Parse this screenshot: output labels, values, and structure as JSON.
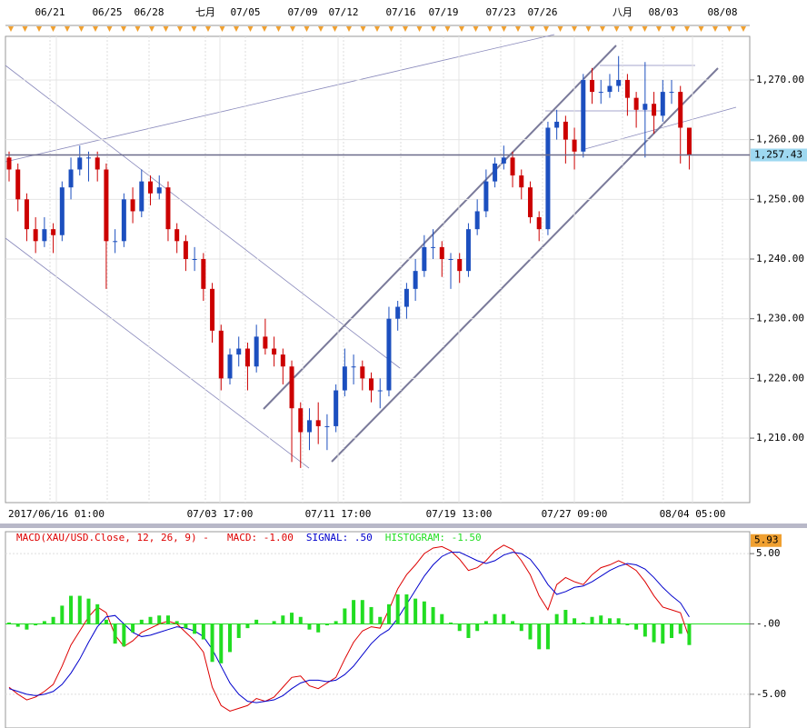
{
  "chart_data": [
    {
      "type": "candlestick",
      "top_dates": [
        "06/21",
        "06/25",
        "06/28",
        "七月",
        "07/05",
        "07/09",
        "07/12",
        "07/16",
        "07/19",
        "07/23",
        "07/26",
        "八月",
        "08/03",
        "08/08"
      ],
      "bottom_dates": [
        "2017/06/16 01:00",
        "07/03 17:00",
        "07/11 17:00",
        "07/19 13:00",
        "07/27 09:00",
        "08/04 05:00"
      ],
      "ylim": [
        1199.2,
        1277.3
      ],
      "yticks": [
        {
          "value": 1210,
          "label": "1,210.00"
        },
        {
          "value": 1220,
          "label": "1,220.00"
        },
        {
          "value": 1230,
          "label": "1,230.00"
        },
        {
          "value": 1240,
          "label": "1,240.00"
        },
        {
          "value": 1250,
          "label": "1,250.00"
        },
        {
          "value": 1260,
          "label": "1,260.00"
        },
        {
          "value": 1270,
          "label": "1,270.00"
        }
      ],
      "current_price": {
        "value": 1257.43,
        "label": "1,257.43"
      },
      "up_color": "#1c4fbf",
      "down_color": "#cc0000",
      "candles": [
        [
          1257,
          1258,
          1253,
          1255
        ],
        [
          1255,
          1256,
          1248,
          1250
        ],
        [
          1250,
          1251,
          1243,
          1245
        ],
        [
          1245,
          1247,
          1241,
          1243
        ],
        [
          1243,
          1247,
          1242,
          1245
        ],
        [
          1245,
          1246,
          1241,
          1244
        ],
        [
          1244,
          1253,
          1243,
          1252
        ],
        [
          1252,
          1257,
          1250,
          1255
        ],
        [
          1255,
          1259,
          1254,
          1257
        ],
        [
          1257,
          1258,
          1253,
          1257
        ],
        [
          1257,
          1258,
          1253,
          1255
        ],
        [
          1255,
          1256,
          1235,
          1243
        ],
        [
          1243,
          1245,
          1241,
          1243
        ],
        [
          1243,
          1251,
          1242,
          1250
        ],
        [
          1250,
          1252,
          1246,
          1248
        ],
        [
          1248,
          1255,
          1247,
          1253
        ],
        [
          1253,
          1254,
          1249,
          1251
        ],
        [
          1251,
          1254,
          1250,
          1252
        ],
        [
          1252,
          1253,
          1243,
          1245
        ],
        [
          1245,
          1246,
          1241,
          1243
        ],
        [
          1243,
          1244,
          1238,
          1240
        ],
        [
          1240,
          1242,
          1238,
          1240
        ],
        [
          1240,
          1241,
          1233,
          1235
        ],
        [
          1235,
          1236,
          1226,
          1228
        ],
        [
          1228,
          1229,
          1218,
          1220
        ],
        [
          1220,
          1225,
          1219,
          1224
        ],
        [
          1224,
          1227,
          1222,
          1225
        ],
        [
          1225,
          1226,
          1218,
          1222
        ],
        [
          1222,
          1229,
          1221,
          1227
        ],
        [
          1227,
          1230,
          1224,
          1225
        ],
        [
          1225,
          1227,
          1222,
          1224
        ],
        [
          1224,
          1225,
          1219,
          1222
        ],
        [
          1222,
          1223,
          1206,
          1215
        ],
        [
          1215,
          1216,
          1205,
          1211
        ],
        [
          1211,
          1215,
          1208,
          1213
        ],
        [
          1213,
          1216,
          1209,
          1212
        ],
        [
          1212,
          1214,
          1208,
          1212
        ],
        [
          1212,
          1219,
          1211,
          1218
        ],
        [
          1218,
          1225,
          1217,
          1222
        ],
        [
          1222,
          1224,
          1219,
          1222
        ],
        [
          1222,
          1223,
          1218,
          1220
        ],
        [
          1220,
          1221,
          1216,
          1218
        ],
        [
          1218,
          1220,
          1215,
          1218
        ],
        [
          1218,
          1232,
          1217,
          1230
        ],
        [
          1230,
          1233,
          1228,
          1232
        ],
        [
          1232,
          1236,
          1230,
          1235
        ],
        [
          1235,
          1240,
          1233,
          1238
        ],
        [
          1238,
          1244,
          1237,
          1242
        ],
        [
          1242,
          1245,
          1240,
          1242
        ],
        [
          1242,
          1243,
          1237,
          1240
        ],
        [
          1240,
          1241,
          1235,
          1240
        ],
        [
          1240,
          1241,
          1236,
          1238
        ],
        [
          1238,
          1246,
          1237,
          1245
        ],
        [
          1245,
          1250,
          1244,
          1248
        ],
        [
          1248,
          1255,
          1247,
          1253
        ],
        [
          1253,
          1257,
          1252,
          1256
        ],
        [
          1256,
          1259,
          1255,
          1257
        ],
        [
          1257,
          1258,
          1252,
          1254
        ],
        [
          1254,
          1255,
          1250,
          1252
        ],
        [
          1252,
          1253,
          1246,
          1247
        ],
        [
          1247,
          1248,
          1243,
          1245
        ],
        [
          1245,
          1263,
          1244,
          1262
        ],
        [
          1262,
          1265,
          1260,
          1263
        ],
        [
          1263,
          1264,
          1256,
          1260
        ],
        [
          1260,
          1262,
          1255,
          1258
        ],
        [
          1258,
          1271,
          1257,
          1270
        ],
        [
          1270,
          1272,
          1266,
          1268
        ],
        [
          1268,
          1270,
          1266,
          1268
        ],
        [
          1268,
          1271,
          1267,
          1269
        ],
        [
          1269,
          1274,
          1268,
          1270
        ],
        [
          1270,
          1271,
          1264,
          1267
        ],
        [
          1267,
          1268,
          1262,
          1265
        ],
        [
          1265,
          1273,
          1257,
          1266
        ],
        [
          1266,
          1268,
          1261,
          1264
        ],
        [
          1264,
          1270,
          1263,
          1268
        ],
        [
          1268,
          1270,
          1266,
          1268
        ],
        [
          1268,
          1269,
          1256,
          1262
        ],
        [
          1262,
          1262,
          1255,
          1257.43
        ]
      ]
    },
    {
      "type": "macd",
      "title": "MACD(XAU/USD.Close, 12, 26, 9) -",
      "ylim": [
        -7.4,
        6.56
      ],
      "yticks": [
        {
          "value": 5,
          "label": "5.00"
        },
        {
          "value": 0,
          "label": "-.00"
        },
        {
          "value": -5,
          "label": "-5.00"
        }
      ],
      "top_marker": {
        "value": 5.93,
        "label": "5.93"
      },
      "series": [
        {
          "name": "MACD",
          "legend": "MACD: -1.00",
          "color": "#dd0000",
          "values": [
            -4.5,
            -5,
            -5.4,
            -5.2,
            -4.8,
            -4.3,
            -3,
            -1.5,
            -0.5,
            0.5,
            1.2,
            0.8,
            -0.8,
            -1.6,
            -1.2,
            -0.6,
            -0.3,
            0,
            0.2,
            0,
            -0.6,
            -1.2,
            -2,
            -4.5,
            -5.8,
            -6.2,
            -6,
            -5.8,
            -5.3,
            -5.5,
            -5.2,
            -4.5,
            -3.8,
            -3.7,
            -4.4,
            -4.6,
            -4.2,
            -3.8,
            -2.5,
            -1.3,
            -0.5,
            -0.2,
            -0.3,
            1,
            2.5,
            3.5,
            4.2,
            5,
            5.4,
            5.5,
            5.2,
            4.6,
            3.8,
            4,
            4.5,
            5.2,
            5.6,
            5.3,
            4.5,
            3.5,
            2,
            1,
            2.8,
            3.3,
            3,
            2.8,
            3.5,
            4,
            4.2,
            4.5,
            4.2,
            3.8,
            3,
            2,
            1.2,
            1,
            0.8,
            -1
          ]
        },
        {
          "name": "SIGNAL",
          "legend": "SIGNAL: .50",
          "color": "#0000cc",
          "values": [
            -4.6,
            -4.8,
            -5,
            -5.1,
            -5,
            -4.8,
            -4.3,
            -3.5,
            -2.5,
            -1.3,
            -0.2,
            0.5,
            0.6,
            0,
            -0.6,
            -0.9,
            -0.8,
            -0.6,
            -0.4,
            -0.2,
            -0.3,
            -0.5,
            -0.9,
            -1.8,
            -3,
            -4.2,
            -5,
            -5.5,
            -5.6,
            -5.5,
            -5.4,
            -5.1,
            -4.6,
            -4.2,
            -4,
            -4,
            -4.1,
            -4,
            -3.6,
            -3,
            -2.2,
            -1.4,
            -0.8,
            -0.4,
            0.4,
            1.4,
            2.4,
            3.4,
            4.2,
            4.8,
            5.1,
            5.1,
            4.8,
            4.5,
            4.3,
            4.5,
            4.9,
            5.1,
            5,
            4.6,
            3.8,
            2.8,
            2.1,
            2.3,
            2.6,
            2.7,
            3,
            3.4,
            3.8,
            4.1,
            4.3,
            4.2,
            3.9,
            3.3,
            2.6,
            2,
            1.5,
            0.5
          ]
        },
        {
          "name": "HISTOGRAM",
          "legend": "HISTOGRAM: -1.50",
          "color": "#22dd22",
          "values": [
            0.1,
            -0.2,
            -0.4,
            -0.1,
            0.2,
            0.5,
            1.3,
            2,
            2,
            1.8,
            1.4,
            0.3,
            -1.4,
            -1.6,
            -0.6,
            0.3,
            0.5,
            0.6,
            0.6,
            0.2,
            -0.3,
            -0.7,
            -1.1,
            -2.7,
            -2.8,
            -2,
            -1,
            -0.3,
            0.3,
            0,
            0.2,
            0.6,
            0.8,
            0.5,
            -0.4,
            -0.6,
            -0.1,
            0.2,
            1.1,
            1.7,
            1.7,
            1.2,
            0.5,
            1.4,
            2.1,
            2.1,
            1.8,
            1.6,
            1.2,
            0.7,
            0.1,
            -0.5,
            -1,
            -0.5,
            0.2,
            0.7,
            0.7,
            0.2,
            -0.5,
            -1.1,
            -1.8,
            -1.8,
            0.7,
            1,
            0.4,
            0.1,
            0.5,
            0.6,
            0.4,
            0.4,
            -0.1,
            -0.4,
            -0.9,
            -1.3,
            -1.4,
            -1,
            -0.7,
            -1.5
          ]
        }
      ]
    }
  ]
}
